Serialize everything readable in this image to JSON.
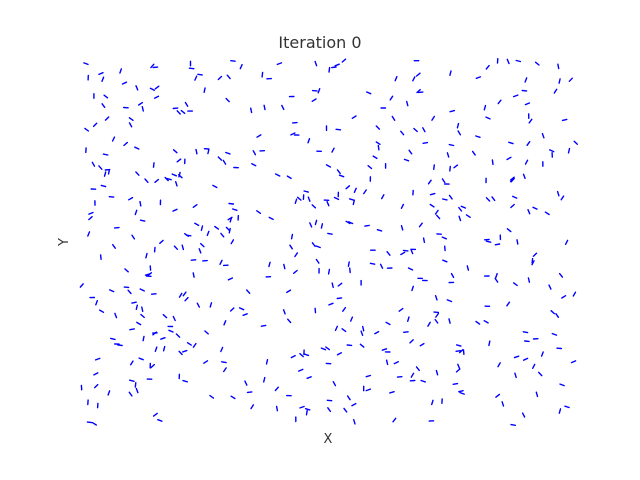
{
  "chart_data": {
    "type": "scatter",
    "title": "Iteration 0",
    "xlabel": "X",
    "ylabel": "Y",
    "marker": "short-dash",
    "marker_color": "#0000ff",
    "grid": false,
    "axes_visible": false,
    "legend": "none",
    "xlim": [
      0,
      1
    ],
    "ylim": [
      0,
      1
    ],
    "point_count": 520,
    "seed": 20240601,
    "points": [
      [
        0.01,
        0.99
      ],
      [
        0.08,
        0.97
      ],
      [
        0.15,
        0.98
      ],
      [
        0.24,
        0.96
      ],
      [
        0.4,
        0.99
      ],
      [
        0.51,
        0.98
      ],
      [
        0.68,
        0.96
      ],
      [
        0.82,
        0.98
      ],
      [
        0.92,
        0.99
      ],
      [
        0.05,
        0.9
      ],
      [
        0.12,
        0.88
      ],
      [
        0.22,
        0.86
      ],
      [
        0.37,
        0.87
      ],
      [
        0.47,
        0.89
      ],
      [
        0.58,
        0.91
      ],
      [
        0.63,
        0.84
      ],
      [
        0.76,
        0.82
      ],
      [
        0.9,
        0.88
      ],
      [
        0.09,
        0.77
      ],
      [
        0.19,
        0.75
      ],
      [
        0.28,
        0.73
      ],
      [
        0.48,
        0.75
      ],
      [
        0.6,
        0.76
      ],
      [
        0.74,
        0.74
      ],
      [
        0.83,
        0.72
      ],
      [
        0.95,
        0.74
      ],
      [
        0.02,
        0.58
      ],
      [
        0.1,
        0.62
      ],
      [
        0.23,
        0.6
      ],
      [
        0.31,
        0.59
      ],
      [
        0.44,
        0.62
      ],
      [
        0.55,
        0.61
      ],
      [
        0.72,
        0.57
      ],
      [
        0.87,
        0.6
      ],
      [
        0.94,
        0.58
      ],
      [
        0.04,
        0.46
      ],
      [
        0.14,
        0.43
      ],
      [
        0.25,
        0.45
      ],
      [
        0.38,
        0.44
      ],
      [
        0.5,
        0.42
      ],
      [
        0.62,
        0.47
      ],
      [
        0.78,
        0.43
      ],
      [
        0.91,
        0.45
      ],
      [
        0.07,
        0.3
      ],
      [
        0.18,
        0.27
      ],
      [
        0.29,
        0.28
      ],
      [
        0.41,
        0.31
      ],
      [
        0.53,
        0.26
      ],
      [
        0.66,
        0.29
      ],
      [
        0.8,
        0.28
      ],
      [
        0.96,
        0.3
      ],
      [
        0.03,
        0.14
      ],
      [
        0.11,
        0.11
      ],
      [
        0.21,
        0.12
      ],
      [
        0.34,
        0.09
      ],
      [
        0.46,
        0.13
      ],
      [
        0.57,
        0.1
      ],
      [
        0.69,
        0.12
      ],
      [
        0.84,
        0.08
      ],
      [
        0.97,
        0.11
      ]
    ]
  }
}
